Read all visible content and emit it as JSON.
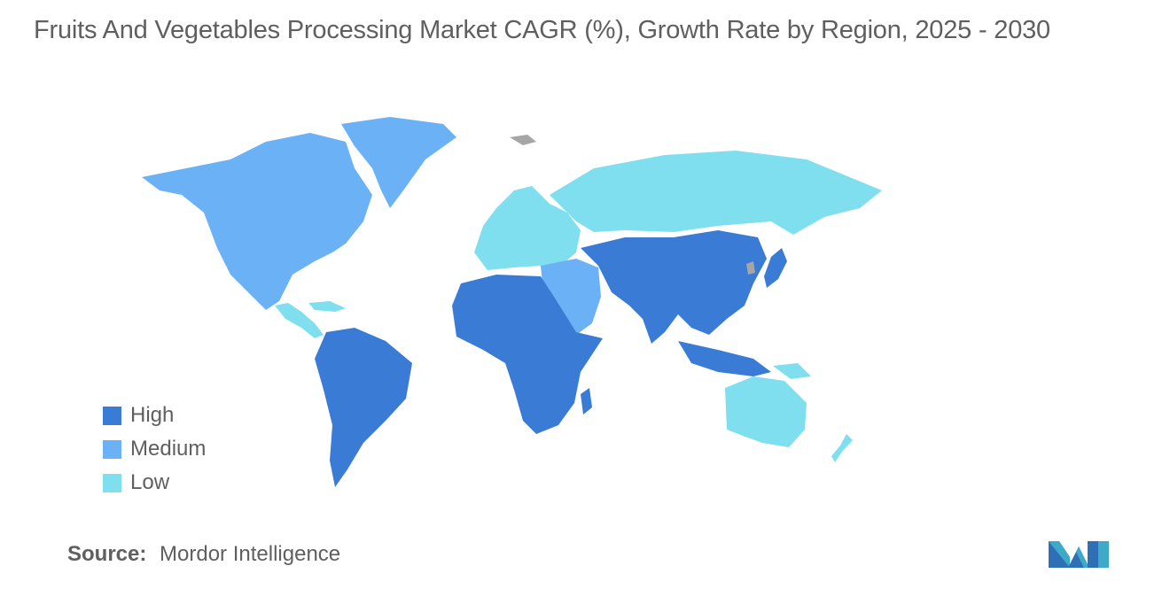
{
  "title": "Fruits And Vegetables Processing Market CAGR (%), Growth Rate by Region, 2025 - 2030",
  "colors": {
    "high": "#3a7bd5",
    "medium": "#6ab1f5",
    "low": "#7fdfef",
    "no_data": "#a6a6a6",
    "text": "#5f5f5f"
  },
  "legend": [
    {
      "label": "High",
      "color": "#3a7bd5"
    },
    {
      "label": "Medium",
      "color": "#6ab1f5"
    },
    {
      "label": "Low",
      "color": "#7fdfef"
    }
  ],
  "regions": {
    "high": [
      "South America",
      "Africa",
      "Asia (excl. Middle East & Russia)",
      "Japan",
      "Southeast Asia"
    ],
    "medium": [
      "North America",
      "Greenland",
      "Middle East"
    ],
    "low": [
      "Europe",
      "Russia",
      "Australia",
      "New Zealand",
      "Central America & Caribbean"
    ]
  },
  "source": {
    "label": "Source:",
    "value": "Mordor Intelligence"
  },
  "logo_icon": "mordor-intelligence-logo-icon"
}
